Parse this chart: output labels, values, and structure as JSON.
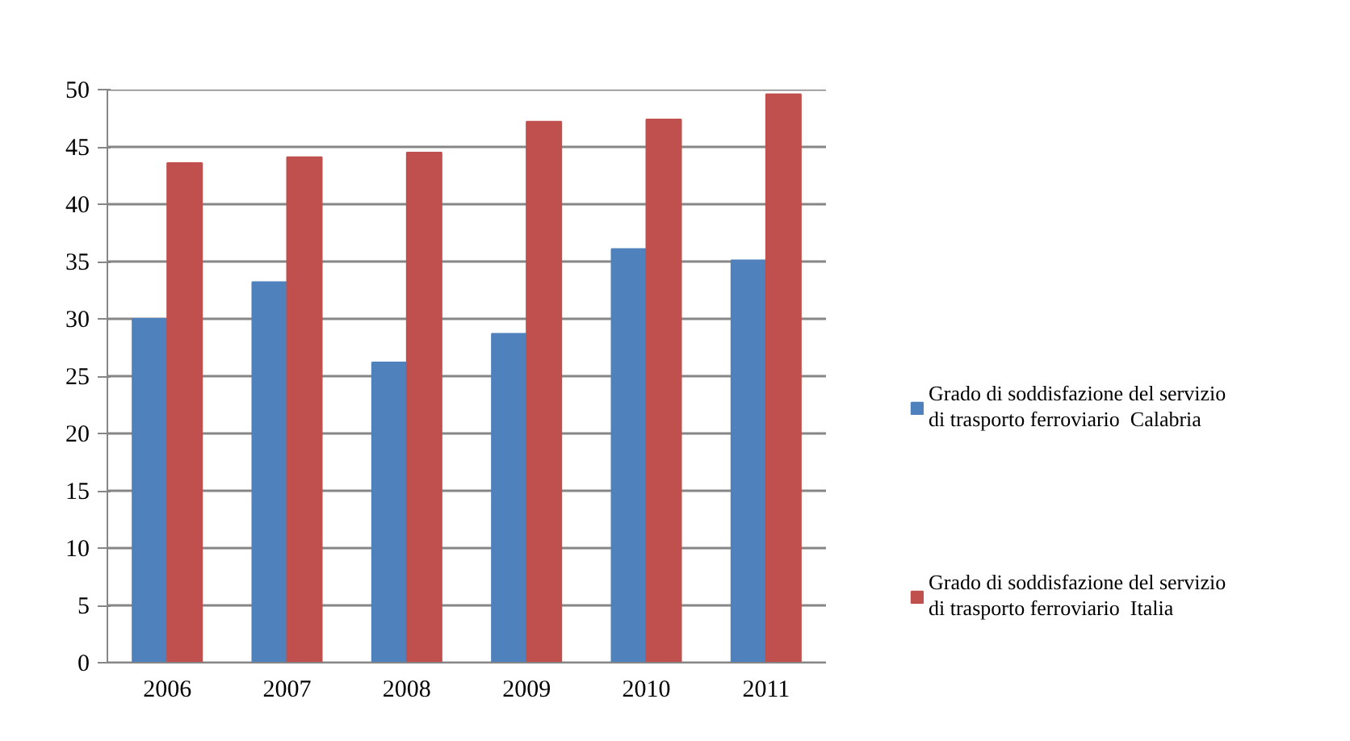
{
  "chart_data": {
    "type": "bar",
    "categories": [
      "2006",
      "2007",
      "2008",
      "2009",
      "2010",
      "2011"
    ],
    "series": [
      {
        "name": "Grado di soddisfazione del servizio\ndi trasporto ferroviario  Calabria",
        "color": "#4f81bd",
        "values": [
          30.0,
          33.2,
          26.2,
          28.7,
          36.1,
          35.1
        ]
      },
      {
        "name": "Grado di soddisfazione del servizio\ndi trasporto ferroviario  Italia",
        "color": "#c0504d",
        "values": [
          43.6,
          44.1,
          44.5,
          47.2,
          47.4,
          49.6
        ]
      }
    ],
    "ylim": [
      0,
      50
    ],
    "yticks": [
      0,
      5,
      10,
      15,
      20,
      25,
      30,
      35,
      40,
      45,
      50
    ],
    "grid": "y",
    "legend": "right"
  }
}
